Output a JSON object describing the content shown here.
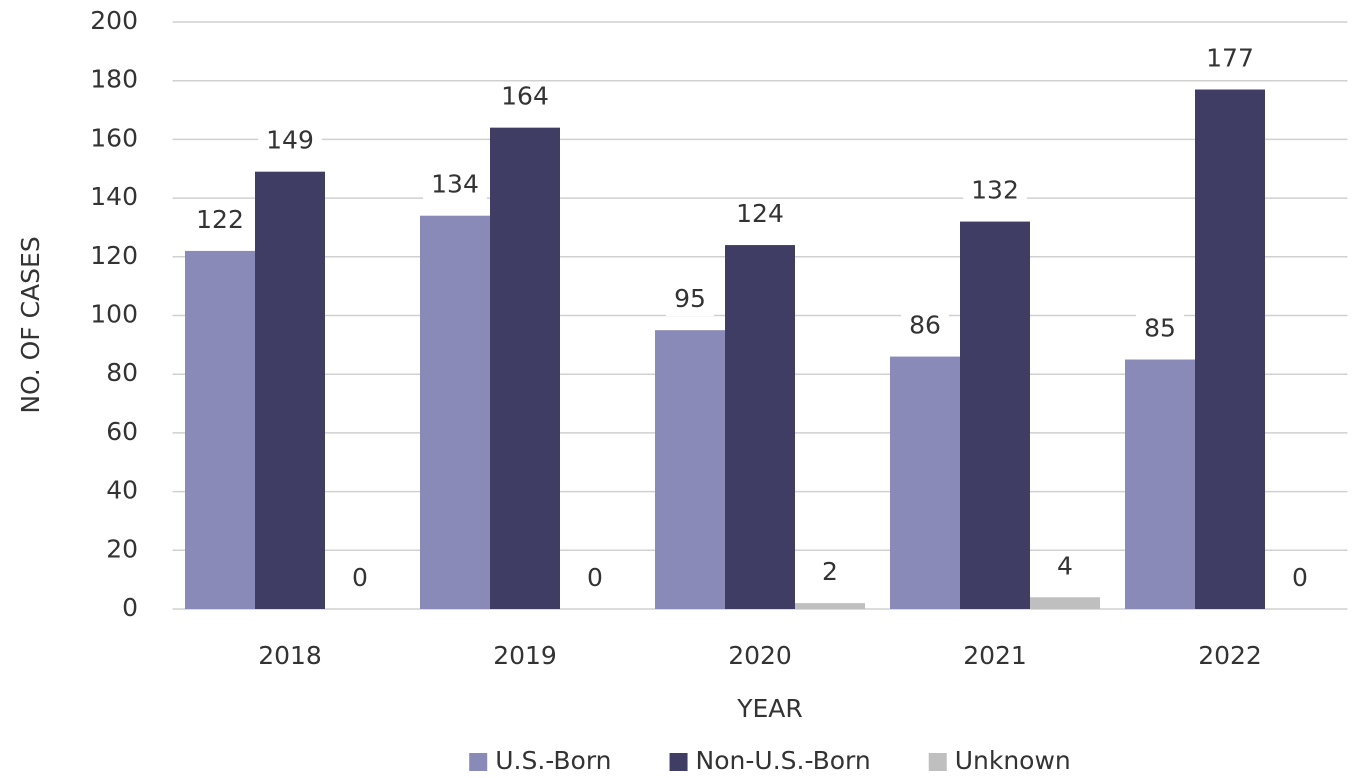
{
  "chart_data": {
    "type": "bar",
    "x_label": "YEAR",
    "y_label": "NO. OF CASES",
    "categories": [
      "2018",
      "2019",
      "2020",
      "2021",
      "2022"
    ],
    "series": [
      {
        "name": "U.S.-Born",
        "color": "#8a8ab8",
        "values": [
          122,
          134,
          95,
          86,
          85
        ]
      },
      {
        "name": "Non-U.S.-Born",
        "color": "#3f3d63",
        "values": [
          149,
          164,
          124,
          132,
          177
        ]
      },
      {
        "name": "Unknown",
        "color": "#bfbfbf",
        "values": [
          0,
          0,
          2,
          4,
          0
        ]
      }
    ],
    "ylim": [
      0,
      200
    ],
    "yticks": [
      0,
      20,
      40,
      60,
      80,
      100,
      120,
      140,
      160,
      180,
      200
    ],
    "grid": true,
    "legend": "bottom"
  }
}
